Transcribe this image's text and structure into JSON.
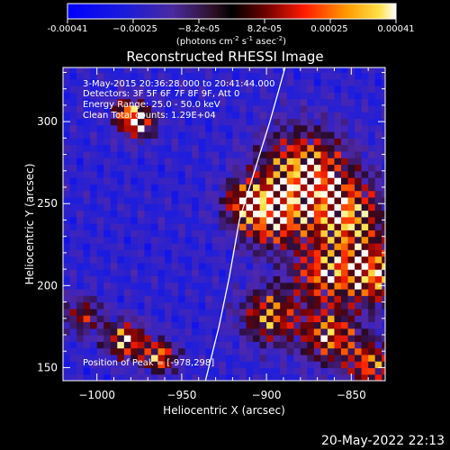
{
  "chart_data": {
    "type": "heatmap",
    "title": "Reconstructed RHESSI Image",
    "xlabel": "Heliocentric X (arcsec)",
    "ylabel": "Heliocentric Y (arcsec)",
    "xlim": [
      -1020,
      -830
    ],
    "ylim": [
      142,
      333
    ],
    "x_ticks": [
      -1000,
      -950,
      -900,
      -850
    ],
    "y_ticks": [
      150,
      200,
      250,
      300
    ],
    "x_tick_labels": [
      "−1000",
      "−950",
      "−900",
      "−850"
    ],
    "y_tick_labels": [
      "150",
      "200",
      "250",
      "300"
    ],
    "colorbar": {
      "range": [
        -0.00041,
        0.00041
      ],
      "tick_labels": [
        "-0.00041",
        "−0.00025",
        "−8.2e-05",
        "8.2e-05",
        "0.00025",
        "0.00041"
      ],
      "units_main": "(photons cm",
      "units_exp1": "-2",
      "units_s": " s",
      "units_exp2": "-1",
      "units_asec": " asec",
      "units_exp3": "-2",
      "units_close": ")"
    },
    "annotations": {
      "time_range": "3-May-2015 20:36:28.000 to 20:41:44.000",
      "detectors": "Detectors: 3F 5F 6F 7F 8F 9F, Att 0",
      "energy": "Energy Range: 25.0 - 50.0 keV",
      "clean": "Clean    Total counts: 1.29E+04",
      "peak": "Position of Peak = [-978,298]"
    },
    "peak": {
      "x": -978,
      "y": 298
    },
    "sources": [
      {
        "x": -978,
        "y": 298,
        "amp": 1.0,
        "r": 7
      },
      {
        "x": -880,
        "y": 268,
        "amp": 0.95,
        "r": 18
      },
      {
        "x": -855,
        "y": 240,
        "amp": 0.9,
        "r": 16
      },
      {
        "x": -900,
        "y": 240,
        "amp": 0.85,
        "r": 14
      },
      {
        "x": -840,
        "y": 205,
        "amp": 0.95,
        "r": 13
      },
      {
        "x": -870,
        "y": 205,
        "amp": 0.75,
        "r": 12
      },
      {
        "x": -900,
        "y": 180,
        "amp": 0.8,
        "r": 12
      },
      {
        "x": -865,
        "y": 168,
        "amp": 0.85,
        "r": 12
      },
      {
        "x": -840,
        "y": 150,
        "amp": 0.8,
        "r": 10
      },
      {
        "x": -985,
        "y": 165,
        "amp": 0.95,
        "r": 8
      },
      {
        "x": -965,
        "y": 155,
        "amp": 0.9,
        "r": 7
      },
      {
        "x": -1010,
        "y": 180,
        "amp": 0.6,
        "r": 8
      },
      {
        "x": -985,
        "y": 305,
        "amp": 0.55,
        "r": 6
      },
      {
        "x": -915,
        "y": 250,
        "amp": 0.6,
        "r": 9
      }
    ],
    "limb": [
      {
        "x": -936,
        "y": 142
      },
      {
        "x": -928,
        "y": 175
      },
      {
        "x": -922,
        "y": 205
      },
      {
        "x": -916,
        "y": 240
      },
      {
        "x": -907,
        "y": 270
      },
      {
        "x": -898,
        "y": 300
      },
      {
        "x": -889,
        "y": 333
      }
    ]
  },
  "footer": {
    "date": "20-May-2022 22:13"
  },
  "colors": {
    "background": "#000000",
    "text": "#ffffff",
    "limb": "#ffffff"
  }
}
